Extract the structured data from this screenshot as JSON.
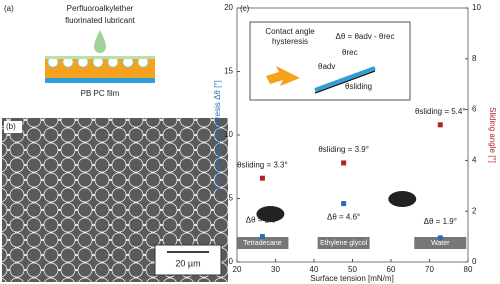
{
  "panel_a": {
    "label": "(a)",
    "lubricant_line1": "Perfluoroalkylether",
    "lubricant_line2": "fluorinated lubricant",
    "film": "PB PC film"
  },
  "panel_b": {
    "label": "(b)",
    "scale_bar": "20 µm"
  },
  "chart_data": {
    "type": "scatter",
    "panel_label": "(c)",
    "x_label": "Surface tension [mN/m]",
    "y_label": "Contact angle hysteresis Δθ [°]",
    "y2_label": "Sliding angle [°]",
    "x": [
      26.6,
      47.7,
      72.8
    ],
    "labels": [
      "Tetradecane",
      "Ethylene glycol",
      "Water"
    ],
    "series": [
      {
        "color": "#2b6cb0",
        "values": [
          2.0,
          4.6,
          1.9
        ],
        "value_labels": [
          "Δθ = 2.0°",
          "Δθ = 4.6°",
          "Δθ = 1.9°"
        ]
      },
      {
        "color": "#b22222",
        "axis": "y2",
        "values": [
          3.3,
          3.9,
          5.4
        ],
        "value_labels": [
          "θsliding = 3.3°",
          "θsliding = 3.9°",
          "θsliding = 5.4°"
        ]
      }
    ],
    "xlim": [
      20,
      80
    ],
    "xticks": [
      20,
      30,
      40,
      50,
      60,
      70,
      80
    ],
    "ylim": [
      0,
      20
    ],
    "yticks": [
      0,
      5,
      10,
      15,
      20
    ],
    "y2lim": [
      0,
      10
    ],
    "y2ticks": [
      0,
      2,
      4,
      6,
      8,
      10
    ],
    "inset": {
      "title_line1": "Contact angle",
      "title_line2": "hysteresis",
      "equation": "Δθ = θadv - θrec",
      "adv": "θadv",
      "rec": "θrec",
      "sliding": "θsliding"
    }
  }
}
